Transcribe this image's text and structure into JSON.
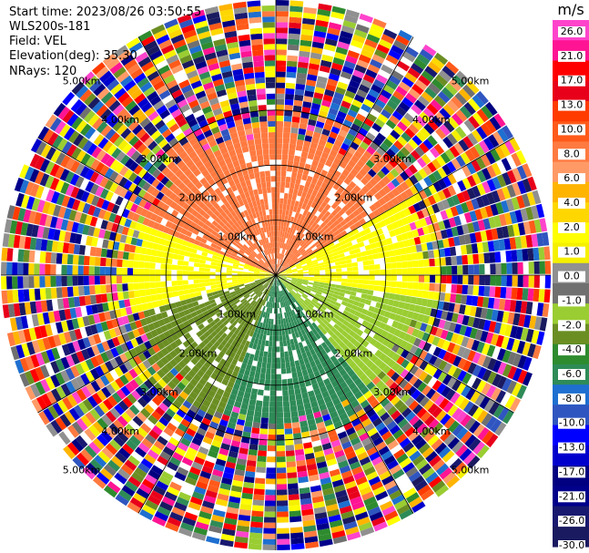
{
  "info": {
    "start_time": "Start time: 2023/08/26 03:50:55",
    "instrument": "WLS200s-181",
    "field": "Field: VEL",
    "elevation": "Elevation(deg): 35.30",
    "nrays": "NRays: 120"
  },
  "colorbar": {
    "unit": "m/s",
    "ticks": [
      "26.0",
      "21.0",
      "17.0",
      "13.0",
      "10.0",
      "8.0",
      "6.0",
      "4.0",
      "2.0",
      "1.0",
      "0.0",
      "-1.0",
      "-2.0",
      "-4.0",
      "-6.0",
      "-8.0",
      "-10.0",
      "-13.0",
      "-17.0",
      "-21.0",
      "-26.0",
      "-30.0"
    ],
    "colors": [
      "#ff44cc",
      "#ff1493",
      "#ff0000",
      "#e8001a",
      "#ff3b00",
      "#ff5a1a",
      "#ff7a40",
      "#ff9a66",
      "#ffb400",
      "#ffd700",
      "#ffff00",
      "#f5f000",
      "#909090",
      "#707070",
      "#9acd32",
      "#6b8e23",
      "#2e8b2e",
      "#2e8b57",
      "#1e6fd0",
      "#2f55c0",
      "#0000ff",
      "#0000cd",
      "#000080",
      "#00008b",
      "#191970",
      "#1a1a60"
    ]
  },
  "chart_data": {
    "type": "heatmap",
    "projection": "polar-ppi",
    "nrays": 120,
    "range_km": [
      0,
      5.0
    ],
    "range_ring_labels": [
      "1.00km",
      "2.00km",
      "3.00km",
      "4.00km",
      "5.00km"
    ],
    "velocity_unit": "m/s",
    "clean_region_km": [
      0,
      2.4
    ],
    "sectors": [
      {
        "azimuth_deg": [
          0,
          60
        ],
        "velocity": 8.0,
        "color": "#ff7a40"
      },
      {
        "azimuth_deg": [
          60,
          100
        ],
        "velocity": 2.0,
        "color": "#ffff00"
      },
      {
        "azimuth_deg": [
          100,
          140
        ],
        "velocity": -2.0,
        "color": "#9acd32"
      },
      {
        "azimuth_deg": [
          140,
          200
        ],
        "velocity": -8.0,
        "color": "#2e8b57"
      },
      {
        "azimuth_deg": [
          200,
          255
        ],
        "velocity": -4.0,
        "color": "#6b8e23"
      },
      {
        "azimuth_deg": [
          255,
          290
        ],
        "velocity": 2.0,
        "color": "#ffff00"
      },
      {
        "azimuth_deg": [
          290,
          360
        ],
        "velocity": 8.0,
        "color": "#ff7a40"
      }
    ]
  }
}
